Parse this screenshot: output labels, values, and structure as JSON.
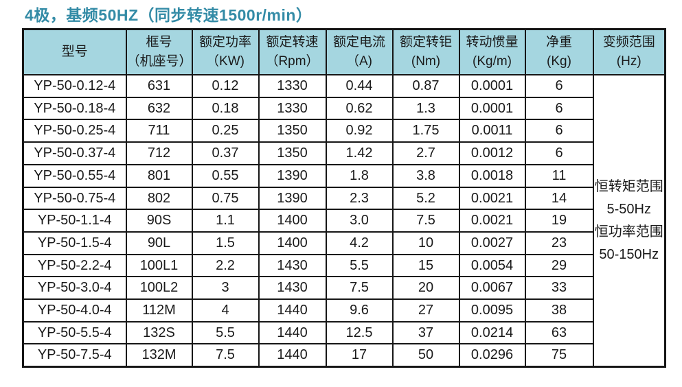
{
  "title": "4极，基频50HZ（同步转速1500r/min）",
  "colors": {
    "title_text": "#338ba6",
    "header_background": "#a5d6e0",
    "border": "#161616",
    "body_text": "#1a1a1a",
    "cell_background": "#ffffff"
  },
  "table": {
    "headers": [
      {
        "id": "model",
        "line1": "型号",
        "line2": ""
      },
      {
        "id": "frame-number",
        "line1": "框号",
        "line2": "（机座号）"
      },
      {
        "id": "rated-power",
        "line1": "额定功率",
        "line2": "（KW)"
      },
      {
        "id": "rated-speed",
        "line1": "额定转速",
        "line2": "（Rpm）"
      },
      {
        "id": "rated-current",
        "line1": "额定电流",
        "line2": "（A)"
      },
      {
        "id": "rated-torque",
        "line1": "额定转钜",
        "line2": "(Nm)"
      },
      {
        "id": "inertia",
        "line1": "转动惯量",
        "line2": "(Kg/m)"
      },
      {
        "id": "net-weight",
        "line1": "净重",
        "line2": "(Kg)"
      },
      {
        "id": "freq-range",
        "line1": "变频范围",
        "line2": "(Hz)"
      }
    ],
    "rows": [
      {
        "cells": [
          "YP-50-0.12-4",
          "631",
          "0.12",
          "1330",
          "0.44",
          "0.87",
          "0.0001",
          "6"
        ]
      },
      {
        "cells": [
          "YP-50-0.18-4",
          "632",
          "0.18",
          "1330",
          "0.62",
          "1.3",
          "0.0001",
          "6"
        ]
      },
      {
        "cells": [
          "YP-50-0.25-4",
          "711",
          "0.25",
          "1350",
          "0.92",
          "1.75",
          "0.0011",
          "6"
        ]
      },
      {
        "cells": [
          "YP-50-0.37-4",
          "712",
          "0.37",
          "1350",
          "1.42",
          "2.7",
          "0.0012",
          "6"
        ]
      },
      {
        "cells": [
          "YP-50-0.55-4",
          "801",
          "0.55",
          "1390",
          "1.8",
          "3.8",
          "0.0018",
          "11"
        ]
      },
      {
        "cells": [
          "YP-50-0.75-4",
          "802",
          "0.75",
          "1390",
          "2.3",
          "5.2",
          "0.0021",
          "14"
        ]
      },
      {
        "cells": [
          "YP-50-1.1-4",
          "90S",
          "1.1",
          "1400",
          "3.0",
          "7.5",
          "0.0021",
          "19"
        ]
      },
      {
        "cells": [
          "YP-50-1.5-4",
          "90L",
          "1.5",
          "1400",
          "4.2",
          "10",
          "0.0027",
          "23"
        ]
      },
      {
        "cells": [
          "YP-50-2.2-4",
          "100L1",
          "2.2",
          "1430",
          "5.5",
          "15",
          "0.0054",
          "29"
        ]
      },
      {
        "cells": [
          "YP-50-3.0-4",
          "100L2",
          "3",
          "1430",
          "7.5",
          "20",
          "0.0067",
          "33"
        ]
      },
      {
        "cells": [
          "YP-50-4.0-4",
          "112M",
          "4",
          "1440",
          "9.6",
          "27",
          "0.0095",
          "38"
        ]
      },
      {
        "cells": [
          "YP-50-5.5-4",
          "132S",
          "5.5",
          "1440",
          "12.5",
          "37",
          "0.0214",
          "63"
        ]
      },
      {
        "cells": [
          "YP-50-7.5-4",
          "132M",
          "7.5",
          "1440",
          "17",
          "50",
          "0.0296",
          "75"
        ]
      }
    ],
    "freq_range_lines": [
      "恒转矩范围",
      "5-50Hz",
      "恒功率范围",
      "50-150Hz"
    ]
  }
}
